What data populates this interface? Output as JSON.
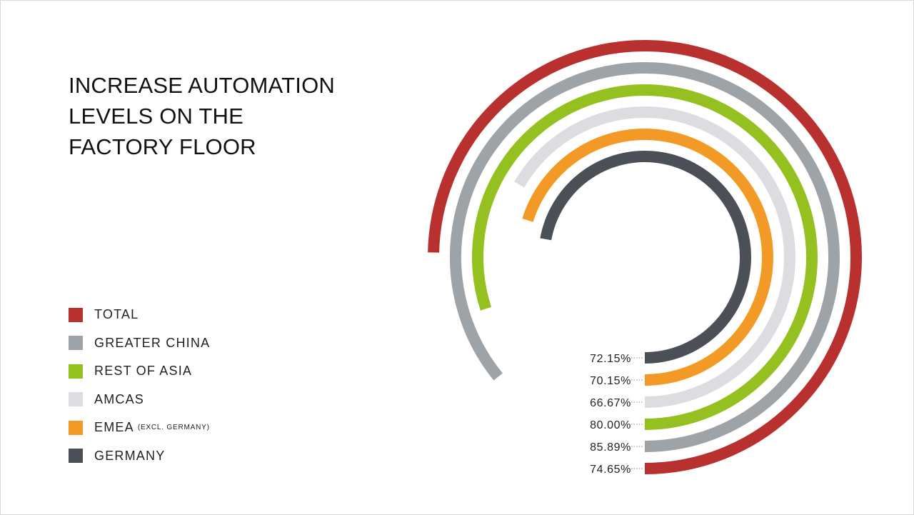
{
  "title": {
    "lines": [
      "INCREASE AUTOMATION",
      "LEVELS ON THE",
      "FACTORY FLOOR"
    ]
  },
  "chart_data": {
    "type": "radial-bar",
    "title": "INCREASE AUTOMATION LEVELS ON THE FACTORY FLOOR",
    "legend_position": "left",
    "series": [
      {
        "name": "TOTAL",
        "value": 74.65,
        "label": "74.65%",
        "color": "#b8312f"
      },
      {
        "name": "GREATER CHINA",
        "value": 85.89,
        "label": "85.89%",
        "color": "#9ea3a8"
      },
      {
        "name": "REST OF ASIA",
        "value": 80.0,
        "label": "80.00%",
        "color": "#94c11f"
      },
      {
        "name": "AMCAS",
        "value": 66.67,
        "label": "66.67%",
        "color": "#dcdde0"
      },
      {
        "name": "EMEA",
        "note": "(EXCL. GERMANY)",
        "value": 70.15,
        "label": "70.15%",
        "color": "#f39a26"
      },
      {
        "name": "GERMANY",
        "value": 72.15,
        "label": "72.15%",
        "color": "#4a5055"
      }
    ]
  }
}
